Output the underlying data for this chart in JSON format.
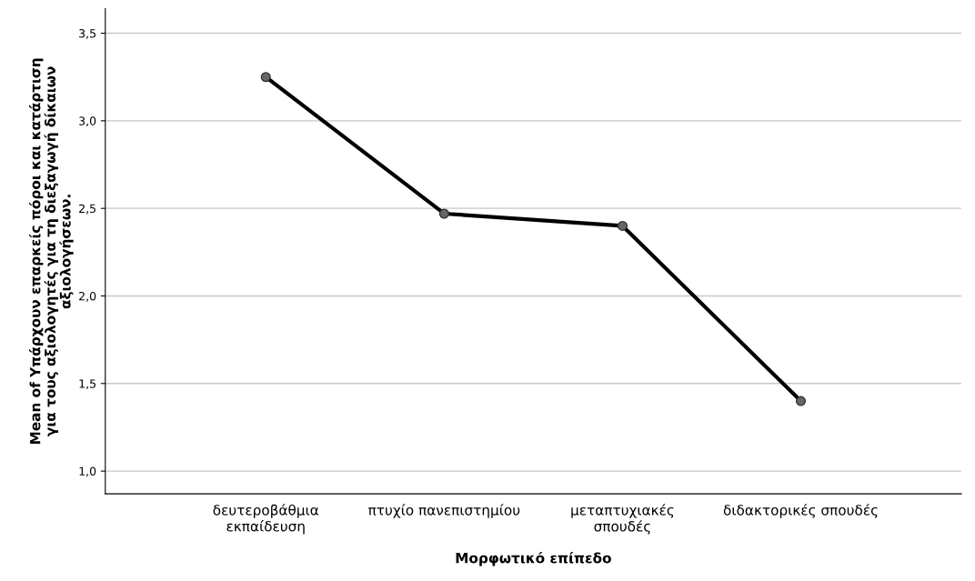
{
  "chart_data": {
    "type": "line",
    "xlabel": "Μορφωτικό επίπεδο",
    "ylabel": "Mean of Υπάρχουν επαρκείς πόροι και κατάρτιση\nγια τους αξιολογητές για τη διεξαγωγή δίκαιων\nαξιολογήσεων.",
    "categories": [
      "δευτεροβάθμια\nεκπαίδευση",
      "πτυχίο πανεπιστημίου",
      "μεταπτυχιακές\nσπουδές",
      "διδακτορικές σπουδές"
    ],
    "series": [
      {
        "color": "#000000",
        "values": [
          3.25,
          2.47,
          2.4,
          1.4
        ]
      }
    ],
    "marker": "circle",
    "line_style": "solid",
    "grid": "y",
    "ylim": [
      0.87,
      3.64
    ],
    "yticks": [
      {
        "value": 1.0,
        "label": "1,0"
      },
      {
        "value": 1.5,
        "label": "1,5"
      },
      {
        "value": 2.0,
        "label": "2,0"
      },
      {
        "value": 2.5,
        "label": "2,5"
      },
      {
        "value": 3.0,
        "label": "3,0"
      },
      {
        "value": 3.5,
        "label": "3,5"
      }
    ]
  }
}
